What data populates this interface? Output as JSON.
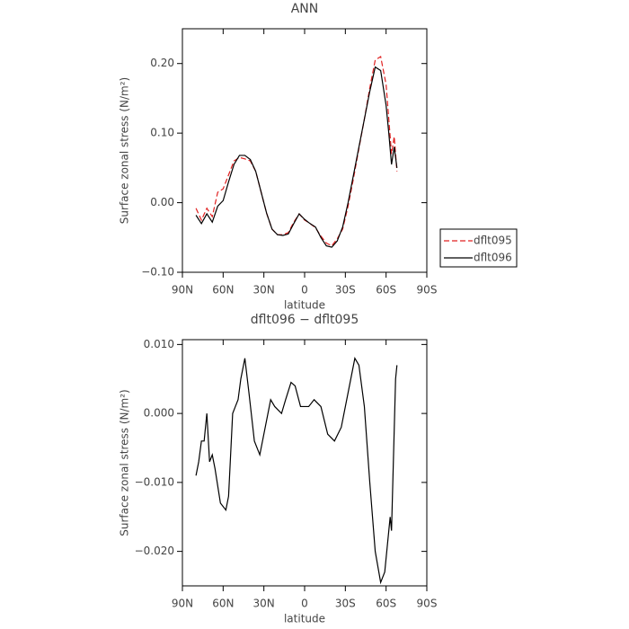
{
  "chart_data": [
    {
      "type": "line",
      "title": "ANN",
      "xlabel": "latitude",
      "ylabel": "Surface zonal stress (N/m²)",
      "x": [
        80,
        76,
        72,
        68,
        64,
        60,
        56,
        52,
        48,
        44,
        40,
        36,
        32,
        28,
        24,
        20,
        16,
        12,
        8,
        4,
        0,
        -4,
        -8,
        -12,
        -16,
        -20,
        -24,
        -28,
        -32,
        -36,
        -40,
        -44,
        -48,
        -52,
        -56,
        -60,
        -62,
        -64,
        -66,
        -68
      ],
      "series": [
        {
          "name": "dflt095",
          "color": "#e02020",
          "dash": true,
          "values": [
            -0.008,
            -0.025,
            -0.008,
            -0.02,
            0.015,
            0.02,
            0.04,
            0.06,
            0.065,
            0.063,
            0.06,
            0.045,
            0.015,
            -0.015,
            -0.038,
            -0.046,
            -0.046,
            -0.043,
            -0.028,
            -0.016,
            -0.025,
            -0.03,
            -0.036,
            -0.048,
            -0.058,
            -0.062,
            -0.052,
            -0.038,
            -0.005,
            0.035,
            0.078,
            0.12,
            0.165,
            0.205,
            0.21,
            0.17,
            0.12,
            0.07,
            0.095,
            0.045
          ]
        },
        {
          "name": "dflt096",
          "color": "#000000",
          "dash": false,
          "values": [
            -0.018,
            -0.03,
            -0.016,
            -0.028,
            -0.005,
            0.003,
            0.03,
            0.055,
            0.068,
            0.068,
            0.062,
            0.045,
            0.015,
            -0.015,
            -0.038,
            -0.046,
            -0.047,
            -0.045,
            -0.03,
            -0.016,
            -0.024,
            -0.03,
            -0.035,
            -0.05,
            -0.062,
            -0.064,
            -0.055,
            -0.035,
            0.0,
            0.04,
            0.08,
            0.12,
            0.16,
            0.195,
            0.19,
            0.14,
            0.1,
            0.055,
            0.08,
            0.05
          ]
        }
      ],
      "xlim": [
        90,
        -90
      ],
      "xticks": [
        {
          "value": 90,
          "label": "90N"
        },
        {
          "value": 60,
          "label": "60N"
        },
        {
          "value": 30,
          "label": "30N"
        },
        0,
        {
          "value": -30,
          "label": "30S"
        },
        {
          "value": -60,
          "label": "60S"
        },
        {
          "value": -90,
          "label": "90S"
        }
      ],
      "ylim": [
        -0.1,
        0.25
      ],
      "yticks": [
        {
          "value": -0.1,
          "label": "−0.10"
        },
        {
          "value": 0,
          "label": "0.00"
        },
        {
          "value": 0.1,
          "label": "0.10"
        },
        {
          "value": 0.2,
          "label": "0.20"
        }
      ],
      "legend": "right"
    },
    {
      "type": "line",
      "title": "dflt096 − dflt095",
      "xlabel": "latitude",
      "ylabel": "Surface zonal stress (N/m²)",
      "x": [
        80,
        78,
        76,
        74,
        72,
        70,
        68,
        66,
        62,
        58,
        56,
        53,
        51,
        49,
        47,
        44,
        41,
        37,
        33,
        28,
        25,
        22,
        17,
        14,
        10,
        7,
        3,
        -3,
        -7,
        -12,
        -17,
        -22,
        -27,
        -32,
        -37,
        -40,
        -44,
        -48,
        -52,
        -56,
        -59,
        -62,
        -63,
        -64,
        -67,
        -68
      ],
      "color": "#000000",
      "values": [
        -0.009,
        -0.007,
        -0.004,
        -0.004,
        0.0,
        -0.007,
        -0.006,
        -0.008,
        -0.013,
        -0.014,
        -0.012,
        0.0,
        0.001,
        0.002,
        0.005,
        0.008,
        0.003,
        -0.004,
        -0.006,
        -0.001,
        0.002,
        0.001,
        0.0,
        0.002,
        0.0045,
        0.004,
        0.001,
        0.001,
        0.002,
        0.001,
        -0.003,
        -0.004,
        -0.002,
        0.003,
        0.008,
        0.007,
        0.001,
        -0.01,
        -0.02,
        -0.0245,
        -0.023,
        -0.017,
        -0.015,
        -0.017,
        0.005,
        0.007
      ],
      "xlim": [
        90,
        -90
      ],
      "xticks": [
        {
          "value": 90,
          "label": "90N"
        },
        {
          "value": 60,
          "label": "60N"
        },
        {
          "value": 30,
          "label": "30N"
        },
        0,
        {
          "value": -30,
          "label": "30S"
        },
        {
          "value": -60,
          "label": "60S"
        },
        {
          "value": -90,
          "label": "90S"
        }
      ],
      "ylim": [
        -0.025,
        0.0107
      ],
      "yticks": [
        {
          "value": -0.02,
          "label": "−0.020"
        },
        {
          "value": -0.01,
          "label": "−0.010"
        },
        {
          "value": 0,
          "label": "0.000"
        },
        {
          "value": 0.01,
          "label": "0.010"
        }
      ]
    }
  ]
}
